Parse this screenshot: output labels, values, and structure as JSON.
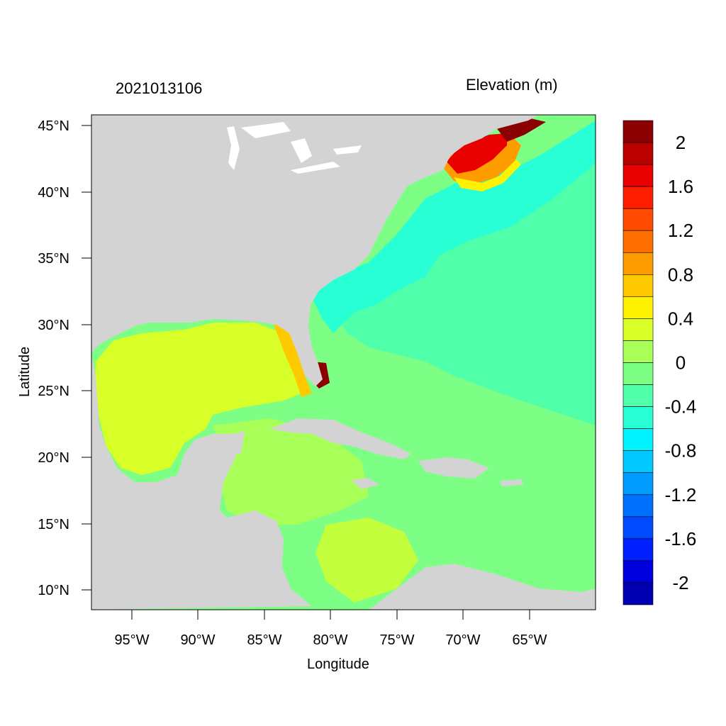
{
  "header": {
    "timestamp": "2021013106",
    "variable": "Elevation (m)"
  },
  "axes": {
    "xlabel": "Longitude",
    "ylabel": "Latitude",
    "x_ticks": [
      "95°W",
      "90°W",
      "85°W",
      "80°W",
      "75°W",
      "70°W",
      "65°W"
    ],
    "y_ticks": [
      "45°N",
      "40°N",
      "35°N",
      "30°N",
      "25°N",
      "20°N",
      "15°N",
      "10°N"
    ]
  },
  "map": {
    "land_color": "#d3d3d3",
    "extent": {
      "lon": [
        -98.1,
        -60.1
      ],
      "lat": [
        8.5,
        45.8
      ]
    },
    "colorbar": {
      "labels": [
        "2",
        "1.6",
        "1.2",
        "0.8",
        "0.4",
        "0",
        "-0.4",
        "-0.8",
        "-1.2",
        "-1.6",
        "-2"
      ],
      "colors": [
        "#8b0000",
        "#bb0000",
        "#e80000",
        "#ff1e00",
        "#ff4a00",
        "#ff7000",
        "#ff9c00",
        "#ffc900",
        "#fff200",
        "#d8ff28",
        "#a8ff58",
        "#7cff84",
        "#50ffaa",
        "#28ffd4",
        "#00f4ff",
        "#00c8ff",
        "#009cff",
        "#0070ff",
        "#004aff",
        "#0020ff",
        "#0000de",
        "#0000b2"
      ]
    }
  }
}
